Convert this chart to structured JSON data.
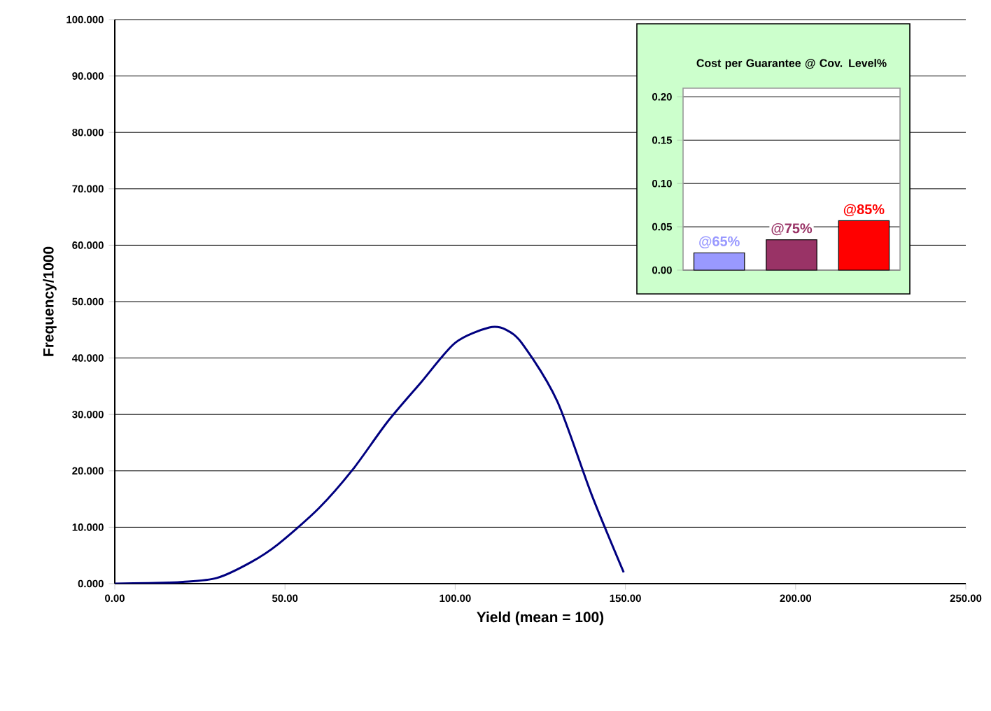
{
  "chart_data": [
    {
      "type": "line",
      "xlabel": "Yield (mean = 100)",
      "ylabel": "Frequency/1000",
      "color": "#000080",
      "grid": "y",
      "x": [
        0,
        10,
        20,
        30,
        40,
        48,
        60,
        70,
        80,
        90,
        100,
        110,
        115,
        120,
        130,
        140,
        149.5
      ],
      "values": [
        0,
        0.1,
        0.3,
        1,
        3.8,
        7,
        13.4,
        20.3,
        28.6,
        35.7,
        42.7,
        45.4,
        45,
        42.3,
        32.3,
        15.9,
        2
      ],
      "xlim": [
        0,
        250
      ],
      "ylim": [
        0,
        100
      ],
      "xticks": [
        {
          "value": 0,
          "label": "0.00"
        },
        {
          "value": 50,
          "label": "50.00"
        },
        {
          "value": 100,
          "label": "100.00"
        },
        {
          "value": 150,
          "label": "150.00"
        },
        {
          "value": 200,
          "label": "200.00"
        },
        {
          "value": 250,
          "label": "250.00"
        }
      ],
      "yticks": [
        {
          "value": 0,
          "label": "0.000"
        },
        {
          "value": 10,
          "label": "10.000"
        },
        {
          "value": 20,
          "label": "20.000"
        },
        {
          "value": 30,
          "label": "30.000"
        },
        {
          "value": 40,
          "label": "40.000"
        },
        {
          "value": 50,
          "label": "50.000"
        },
        {
          "value": 60,
          "label": "60.000"
        },
        {
          "value": 70,
          "label": "70.000"
        },
        {
          "value": 80,
          "label": "80.000"
        },
        {
          "value": 90,
          "label": "90.000"
        },
        {
          "value": 100,
          "label": "100.000"
        }
      ]
    },
    {
      "type": "bar",
      "title": "Cost per Guarantee @ Cov. Level%",
      "grid": "y",
      "categories": [
        "@65%",
        "@75%",
        "@85%"
      ],
      "values": [
        0.02,
        0.035,
        0.057
      ],
      "colors": [
        "#9999ff",
        "#993366",
        "#ff0000"
      ],
      "ylim": [
        0,
        0.21
      ],
      "yticks": [
        {
          "value": 0,
          "label": "0.00"
        },
        {
          "value": 0.05,
          "label": "0.05"
        },
        {
          "value": 0.1,
          "label": "0.10"
        },
        {
          "value": 0.15,
          "label": "0.15"
        },
        {
          "value": 0.2,
          "label": "0.20"
        }
      ]
    }
  ]
}
